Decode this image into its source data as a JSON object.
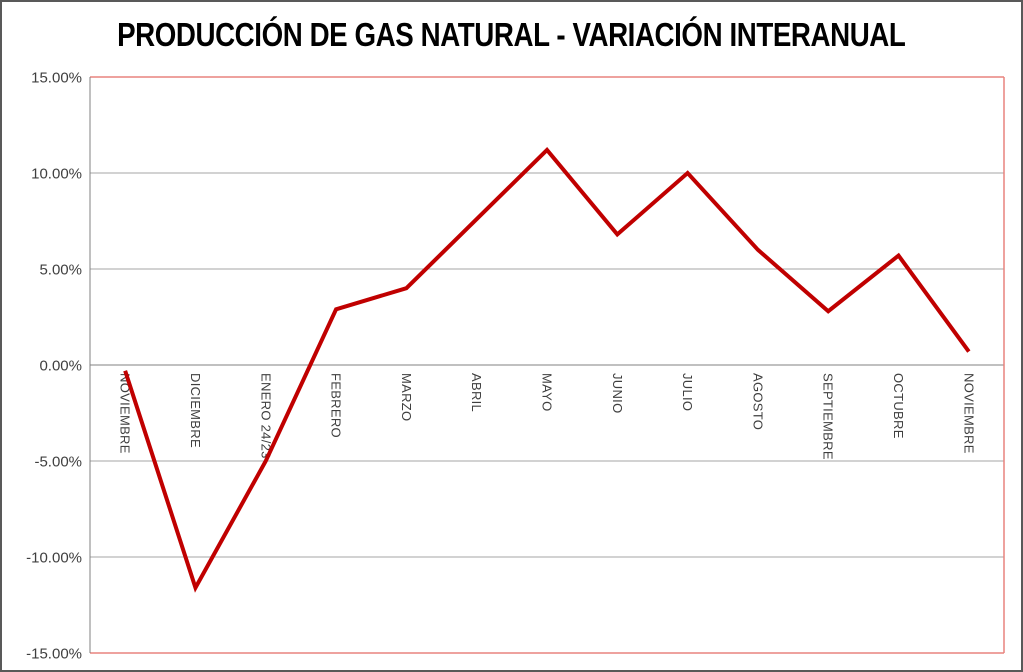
{
  "chart_data": {
    "type": "line",
    "title": "PRODUCCIÓN DE GAS NATURAL - VARIACIÓN INTERANUAL",
    "xlabel": "",
    "ylabel": "",
    "categories": [
      "NOVIEMBRE",
      "DICIEMBRE",
      "ENERO 24/23",
      "FEBRERO",
      "MARZO",
      "ABRIL",
      "MAYO",
      "JUNIO",
      "JULIO",
      "AGOSTO",
      "SEPTIEMBRE",
      "OCTUBRE",
      "NOVIEMBRE"
    ],
    "values": [
      -0.3,
      -11.6,
      -5.0,
      2.9,
      4.0,
      7.6,
      11.2,
      6.8,
      10.0,
      6.0,
      2.8,
      5.7,
      0.7
    ],
    "value_unit": "%",
    "ylim": [
      -15,
      15
    ],
    "ytick_values": [
      15,
      10,
      5,
      0,
      -5,
      -10,
      -15
    ],
    "ytick_labels": [
      "15.00%",
      "10.00%",
      "5.00%",
      "0.00%",
      "-5.00%",
      "-10.00%",
      "-15.00%"
    ],
    "grid": "horizontal",
    "legend_position": "none"
  },
  "colors": {
    "line": "#C00000",
    "plot_border": "#E8837E",
    "gridline": "#A6A6A6",
    "zero_axis": "#808080",
    "y_axis": "#808080",
    "tick_text": "#3F3F3F",
    "outer_border": "#595959"
  }
}
